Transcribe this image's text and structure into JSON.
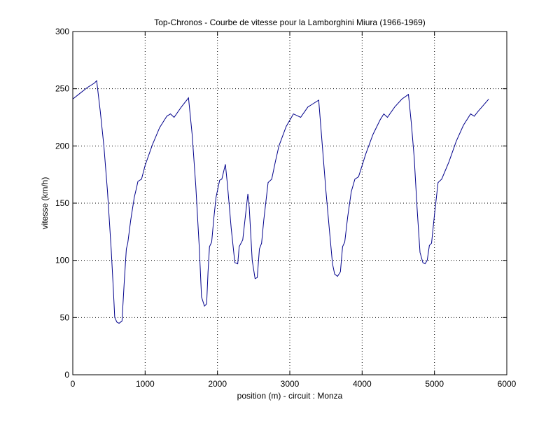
{
  "chart_data": {
    "type": "line",
    "title": "Top-Chronos - Courbe de vitesse pour la Lamborghini Miura (1966-1969)",
    "xlabel": "position (m) - circuit : Monza",
    "ylabel": "vitesse (km/h)",
    "xlim": [
      0,
      6000
    ],
    "ylim": [
      0,
      300
    ],
    "xticks": [
      0,
      1000,
      2000,
      3000,
      4000,
      5000,
      6000
    ],
    "yticks": [
      0,
      50,
      100,
      150,
      200,
      250,
      300
    ],
    "grid": true,
    "line_color": "#00008b",
    "series": [
      {
        "x": [
          0,
          100,
          200,
          300,
          330,
          380,
          430,
          480,
          530,
          560,
          580,
          610,
          640,
          680,
          710,
          740,
          760,
          800,
          850,
          880,
          900,
          950,
          1000,
          1100,
          1200,
          1300,
          1350,
          1400,
          1500,
          1600,
          1650,
          1700,
          1750,
          1780,
          1820,
          1850,
          1870,
          1890,
          1920,
          1950,
          1980,
          2030,
          2060,
          2110,
          2140,
          2190,
          2240,
          2280,
          2300,
          2350,
          2380,
          2420,
          2440,
          2480,
          2520,
          2550,
          2580,
          2610,
          2640,
          2700,
          2750,
          2800,
          2850,
          2950,
          3050,
          3150,
          3250,
          3300,
          3400,
          3450,
          3500,
          3550,
          3590,
          3620,
          3660,
          3700,
          3730,
          3760,
          3800,
          3850,
          3900,
          3950,
          4050,
          4150,
          4250,
          4300,
          4350,
          4450,
          4550,
          4640,
          4680,
          4720,
          4760,
          4800,
          4840,
          4870,
          4900,
          4930,
          4960,
          5000,
          5050,
          5100,
          5200,
          5300,
          5400,
          5500,
          5550,
          5600,
          5750
        ],
        "y": [
          241,
          246,
          251,
          255,
          257,
          230,
          200,
          160,
          110,
          75,
          50,
          46,
          45,
          47,
          80,
          110,
          115,
          135,
          155,
          163,
          169,
          171,
          183,
          201,
          216,
          226,
          228,
          225,
          234,
          242,
          210,
          165,
          110,
          68,
          60,
          62,
          90,
          112,
          116,
          137,
          155,
          170,
          171,
          184,
          165,
          128,
          98,
          97,
          112,
          118,
          135,
          158,
          146,
          100,
          84,
          85,
          110,
          115,
          135,
          168,
          171,
          186,
          200,
          217,
          228,
          225,
          234,
          236,
          240,
          200,
          160,
          125,
          97,
          88,
          86,
          90,
          112,
          116,
          138,
          160,
          171,
          173,
          193,
          210,
          223,
          228,
          225,
          234,
          241,
          245,
          220,
          190,
          145,
          107,
          98,
          97,
          100,
          113,
          115,
          140,
          168,
          171,
          186,
          204,
          218,
          228,
          226,
          230,
          241
        ]
      }
    ]
  }
}
